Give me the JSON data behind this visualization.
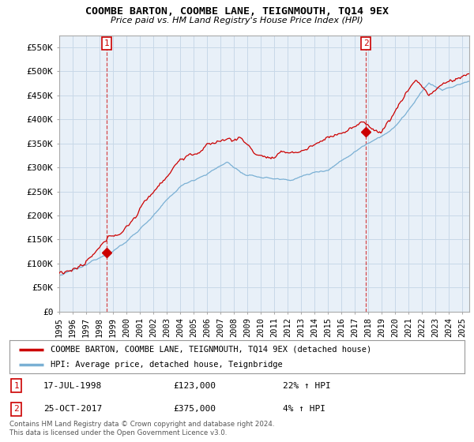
{
  "title": "COOMBE BARTON, COOMBE LANE, TEIGNMOUTH, TQ14 9EX",
  "subtitle": "Price paid vs. HM Land Registry's House Price Index (HPI)",
  "ylim": [
    0,
    575000
  ],
  "yticks": [
    0,
    50000,
    100000,
    150000,
    200000,
    250000,
    300000,
    350000,
    400000,
    450000,
    500000,
    550000
  ],
  "ytick_labels": [
    "£0",
    "£50K",
    "£100K",
    "£150K",
    "£200K",
    "£250K",
    "£300K",
    "£350K",
    "£400K",
    "£450K",
    "£500K",
    "£550K"
  ],
  "sale1_date": 1998.54,
  "sale1_price": 123000,
  "sale1_label": "1",
  "sale2_date": 2017.81,
  "sale2_price": 375000,
  "sale2_label": "2",
  "sale_color": "#cc0000",
  "hpi_color": "#7ab0d4",
  "plot_bg": "#e8f0f8",
  "legend_line1": "COOMBE BARTON, COOMBE LANE, TEIGNMOUTH, TQ14 9EX (detached house)",
  "legend_line2": "HPI: Average price, detached house, Teignbridge",
  "annotation1_date": "17-JUL-1998",
  "annotation1_price": "£123,000",
  "annotation1_hpi": "22% ↑ HPI",
  "annotation2_date": "25-OCT-2017",
  "annotation2_price": "£375,000",
  "annotation2_hpi": "4% ↑ HPI",
  "footer": "Contains HM Land Registry data © Crown copyright and database right 2024.\nThis data is licensed under the Open Government Licence v3.0.",
  "background_color": "#ffffff",
  "grid_color": "#c8d8e8",
  "xmin": 1995.0,
  "xmax": 2025.5
}
